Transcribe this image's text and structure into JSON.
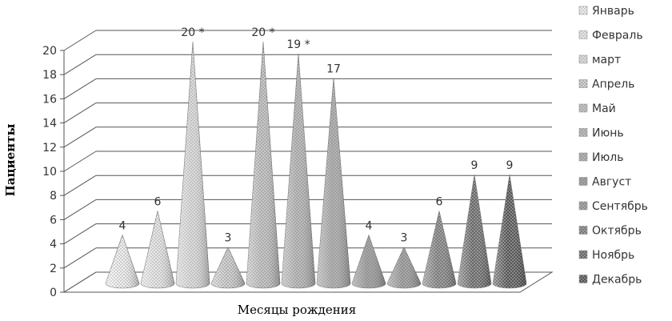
{
  "chart_data": {
    "type": "bar",
    "title": "",
    "xlabel": "Месяцы рождения",
    "ylabel": "Пациенты",
    "ylim": [
      0,
      20
    ],
    "yticks": [
      0,
      2,
      4,
      6,
      8,
      10,
      12,
      14,
      16,
      18,
      20
    ],
    "grid": true,
    "legend_position": "right",
    "categories": [
      "Январь",
      "Февраль",
      "март",
      "Апрель",
      "Май",
      "Июнь",
      "Июль",
      "Август",
      "Сентябрь",
      "Октябрь",
      "Ноябрь",
      "Декабрь"
    ],
    "values": [
      4,
      6,
      20,
      3,
      20,
      19,
      17,
      4,
      3,
      6,
      9,
      9
    ],
    "value_labels": [
      "4",
      "6",
      "20 *",
      "3",
      "20 *",
      "19 *",
      "17",
      "4",
      "3",
      "6",
      "9",
      "9"
    ],
    "legend_labels": [
      "Январь",
      "Февраль",
      "март",
      "Апрель",
      "Май",
      "Июнь",
      "Июль",
      "Август",
      "Сентябрь",
      "Октябрь",
      "Ноябрь",
      "Декабрь"
    ],
    "colors": [
      "#efefef",
      "#e6e6e6",
      "#dcdcdc",
      "#d2d2d2",
      "#c7c7c7",
      "#bdbdbd",
      "#b3b3b3",
      "#a3a3a3",
      "#8e8e8e",
      "#7a7a7a",
      "#666666",
      "#525252"
    ]
  }
}
